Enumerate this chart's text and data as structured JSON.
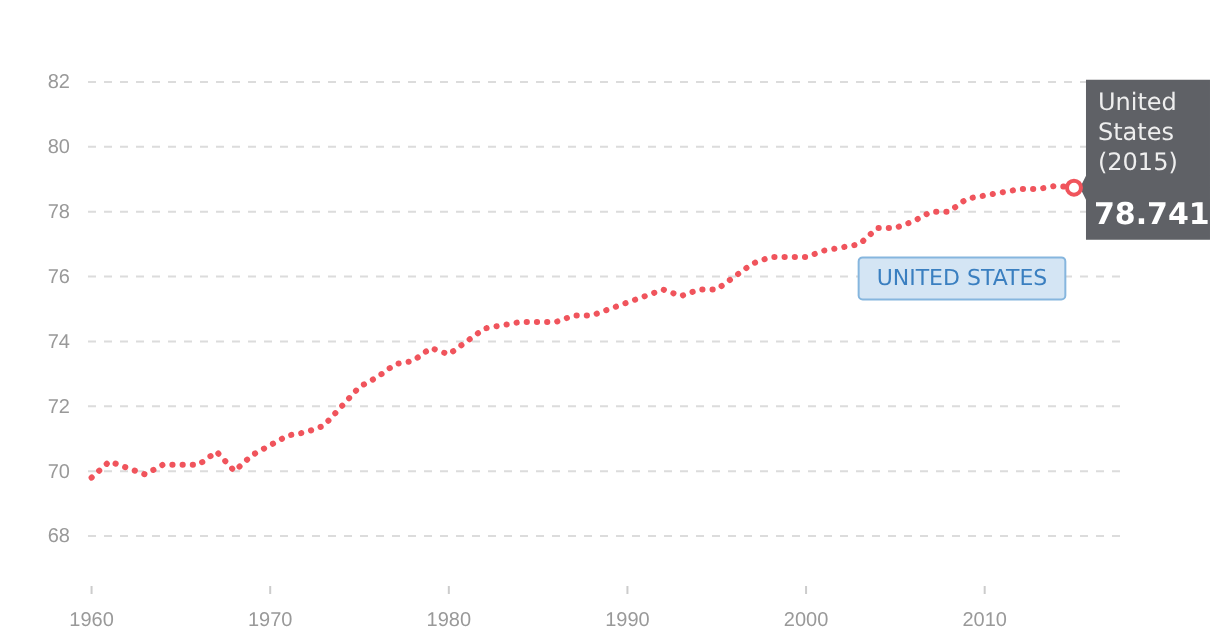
{
  "chart_data": {
    "type": "line",
    "x": [
      1960,
      1961,
      1962,
      1963,
      1964,
      1965,
      1966,
      1967,
      1968,
      1969,
      1970,
      1971,
      1972,
      1973,
      1974,
      1975,
      1976,
      1977,
      1978,
      1979,
      1980,
      1981,
      1982,
      1983,
      1984,
      1985,
      1986,
      1987,
      1988,
      1989,
      1990,
      1991,
      1992,
      1993,
      1994,
      1995,
      1996,
      1997,
      1998,
      1999,
      2000,
      2001,
      2002,
      2003,
      2004,
      2005,
      2006,
      2007,
      2008,
      2009,
      2010,
      2011,
      2012,
      2013,
      2014,
      2015
    ],
    "series": [
      {
        "name": "UNITED STATES",
        "color": "#f0545c",
        "values": [
          69.8,
          70.3,
          70.1,
          69.9,
          70.2,
          70.2,
          70.2,
          70.6,
          70.0,
          70.5,
          70.8,
          71.1,
          71.2,
          71.4,
          72.0,
          72.6,
          72.9,
          73.3,
          73.4,
          73.8,
          73.6,
          74.0,
          74.4,
          74.5,
          74.6,
          74.6,
          74.6,
          74.8,
          74.8,
          75.0,
          75.2,
          75.4,
          75.6,
          75.4,
          75.6,
          75.6,
          76.0,
          76.4,
          76.6,
          76.6,
          76.6,
          76.8,
          76.9,
          77.0,
          77.5,
          77.5,
          77.7,
          78.0,
          78.0,
          78.4,
          78.5,
          78.6,
          78.7,
          78.7,
          78.8,
          78.741
        ],
        "value_labels": [
          null,
          null,
          null,
          null,
          null,
          null,
          null,
          null,
          null,
          null,
          null,
          null,
          null,
          null,
          null,
          null,
          null,
          null,
          null,
          null,
          null,
          null,
          null,
          null,
          null,
          null,
          null,
          null,
          null,
          null,
          null,
          null,
          null,
          null,
          null,
          null,
          null,
          null,
          null,
          null,
          null,
          null,
          null,
          null,
          null,
          null,
          null,
          null,
          null,
          null,
          null,
          null,
          null,
          null,
          null,
          "78.741"
        ]
      }
    ],
    "annotations": [
      "United States (2015)"
    ],
    "xlim": [
      1959.8,
      2017.8
    ],
    "ylim": [
      68,
      82
    ],
    "xticks": [
      1960,
      1970,
      1980,
      1990,
      2000,
      2010
    ],
    "yticks": [
      68,
      70,
      72,
      74,
      76,
      78,
      80,
      82
    ],
    "grid": "y",
    "line_style": "dotted",
    "marker": "none",
    "legend": false
  }
}
